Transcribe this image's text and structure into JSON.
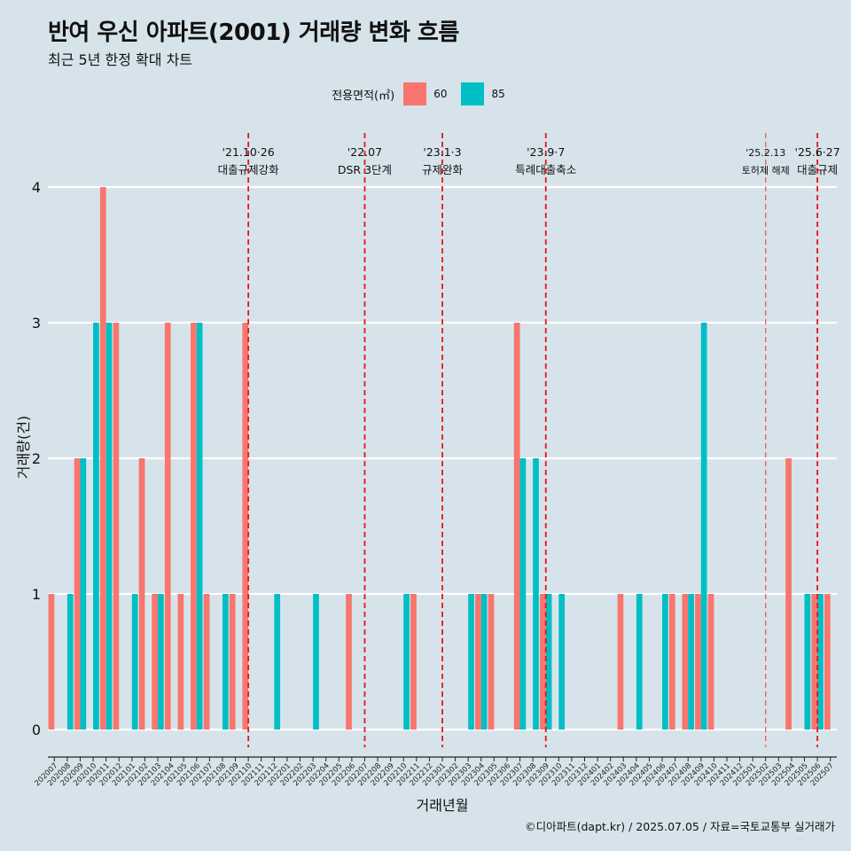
{
  "title": "반여 우신 아파트(2001) 거래량 변화 흐름",
  "subtitle": "최근 5년 한정 확대 차트",
  "legend": {
    "title": "전용면적(㎡)",
    "items": [
      {
        "label": "60",
        "color": "#f8766d"
      },
      {
        "label": "85",
        "color": "#00bfc4"
      }
    ]
  },
  "caption": "©디아파트(dapt.kr) / 2025.07.05 / 자료=국토교통부 실거래가",
  "chart_data": {
    "type": "bar",
    "xlabel": "거래년월",
    "ylabel": "거래량(건)",
    "ylim": [
      0,
      4
    ],
    "yticks": [
      0,
      1,
      2,
      3,
      4
    ],
    "categories": [
      "202007",
      "202008",
      "202009",
      "202010",
      "202011",
      "202012",
      "202101",
      "202102",
      "202103",
      "202104",
      "202105",
      "202106",
      "202107",
      "202108",
      "202109",
      "202110",
      "202111",
      "202112",
      "202201",
      "202202",
      "202203",
      "202204",
      "202205",
      "202206",
      "202207",
      "202208",
      "202209",
      "202210",
      "202211",
      "202212",
      "202301",
      "202302",
      "202303",
      "202304",
      "202305",
      "202306",
      "202307",
      "202308",
      "202309",
      "202310",
      "202311",
      "202312",
      "202401",
      "202402",
      "202403",
      "202404",
      "202405",
      "202406",
      "202407",
      "202408",
      "202409",
      "202410",
      "202411",
      "202412",
      "202501",
      "202502",
      "202503",
      "202504",
      "202505",
      "202506",
      "202507"
    ],
    "series": [
      {
        "name": "60",
        "color": "#f8766d",
        "values": [
          1,
          0,
          2,
          0,
          4,
          3,
          0,
          2,
          1,
          3,
          1,
          3,
          1,
          0,
          1,
          3,
          0,
          0,
          0,
          0,
          0,
          0,
          0,
          1,
          0,
          0,
          0,
          0,
          1,
          0,
          0,
          0,
          0,
          1,
          1,
          0,
          3,
          0,
          1,
          0,
          0,
          0,
          0,
          0,
          1,
          0,
          0,
          0,
          1,
          1,
          1,
          1,
          0,
          0,
          0,
          0,
          0,
          2,
          0,
          1,
          1
        ]
      },
      {
        "name": "85",
        "color": "#00bfc4",
        "values": [
          0,
          1,
          2,
          3,
          3,
          0,
          1,
          0,
          1,
          0,
          0,
          3,
          0,
          1,
          0,
          0,
          0,
          1,
          0,
          0,
          1,
          0,
          0,
          0,
          0,
          0,
          0,
          1,
          0,
          0,
          0,
          0,
          1,
          1,
          0,
          0,
          2,
          2,
          1,
          1,
          0,
          0,
          0,
          0,
          0,
          1,
          0,
          1,
          0,
          1,
          3,
          0,
          0,
          0,
          0,
          0,
          0,
          0,
          1,
          1,
          0
        ]
      }
    ],
    "events": [
      {
        "idx": 15,
        "date": "'21.10·26",
        "label": "대출규제강화",
        "style": "thick"
      },
      {
        "idx": 24,
        "date": "'22.07",
        "label": "DSR 3단계",
        "style": "thick"
      },
      {
        "idx": 30,
        "date": "'23.1·3",
        "label": "규제완화",
        "style": "thick"
      },
      {
        "idx": 38,
        "date": "'23.9·7",
        "label": "특례대출축소",
        "style": "thick"
      },
      {
        "idx": 55,
        "date": "'25.2.13",
        "label": "토허제 해제",
        "style": "thin"
      },
      {
        "idx": 59,
        "date": "'25.6·27",
        "label": "대출규제",
        "style": "thick"
      }
    ]
  }
}
